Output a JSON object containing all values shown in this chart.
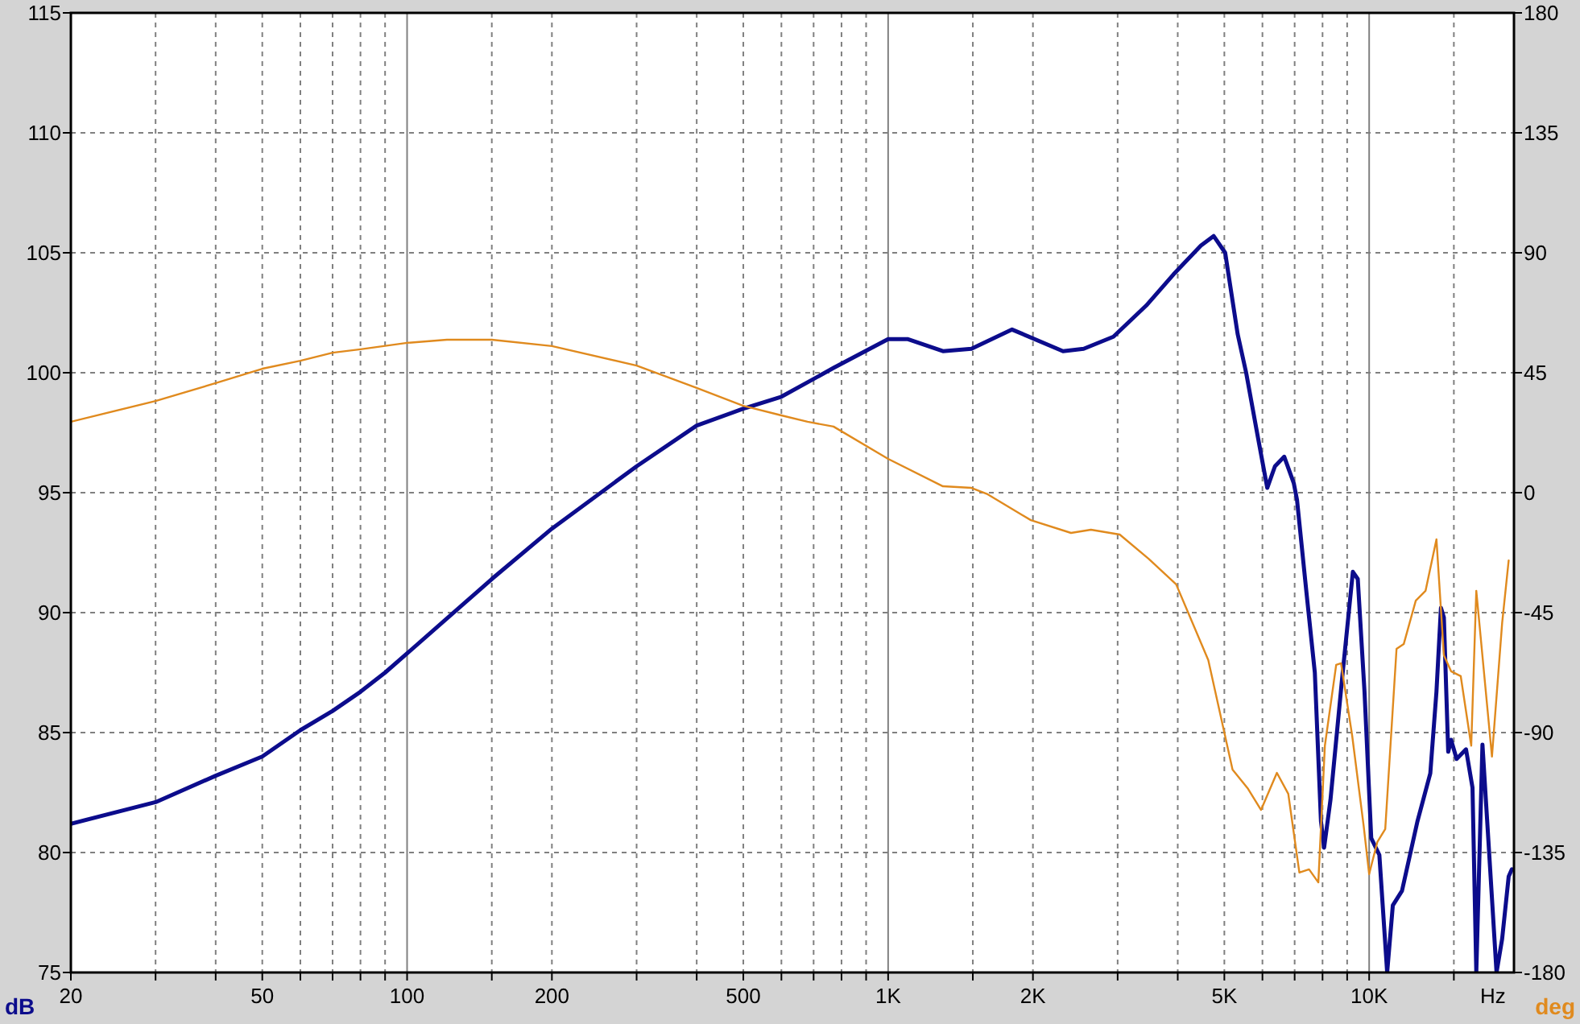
{
  "chart_data": {
    "type": "line",
    "xlabel": "Hz",
    "ylabel": "dB",
    "y2label": "deg",
    "log": "x",
    "grid": true,
    "xlim": [
      20,
      20000
    ],
    "ylim": [
      75,
      115
    ],
    "y2lim": [
      -180,
      180
    ],
    "xticks": [
      20,
      {
        "value": 30,
        "label": null
      },
      {
        "value": 40,
        "label": null
      },
      50,
      {
        "value": 60,
        "label": null
      },
      {
        "value": 70,
        "label": null
      },
      {
        "value": 80,
        "label": null
      },
      {
        "value": 90,
        "label": null
      },
      100,
      {
        "value": 150,
        "label": null
      },
      200,
      {
        "value": 300,
        "label": null
      },
      {
        "value": 400,
        "label": null
      },
      500,
      {
        "value": 600,
        "label": null
      },
      {
        "value": 700,
        "label": null
      },
      {
        "value": 800,
        "label": null
      },
      {
        "value": 900,
        "label": null
      },
      {
        "value": 1000,
        "label": "1K"
      },
      {
        "value": 1500,
        "label": null
      },
      {
        "value": 2000,
        "label": "2K"
      },
      {
        "value": 3000,
        "label": null
      },
      {
        "value": 4000,
        "label": null
      },
      {
        "value": 5000,
        "label": "5K"
      },
      {
        "value": 6000,
        "label": null
      },
      {
        "value": 7000,
        "label": null
      },
      {
        "value": 8000,
        "label": null
      },
      {
        "value": 9000,
        "label": null
      },
      {
        "value": 10000,
        "label": "10K"
      },
      {
        "value": 15000,
        "label": null
      }
    ],
    "yticks": [
      75,
      80,
      85,
      90,
      95,
      100,
      105,
      110,
      115
    ],
    "y2ticks": [
      -180,
      -135,
      -90,
      -45,
      0,
      45,
      90,
      135,
      180
    ],
    "series": [
      {
        "color": "#0c0c8c",
        "x": [
          20,
          30,
          40,
          50,
          60,
          70,
          80,
          90,
          100,
          150,
          200,
          300,
          400,
          500,
          600,
          680,
          770,
          1000,
          1100,
          1300,
          1490,
          1810,
          2310,
          2550,
          2940,
          3440,
          3920,
          4470,
          4750,
          5020,
          5330,
          5550,
          5860,
          6140,
          6370,
          6660,
          6970,
          7080,
          7420,
          7710,
          7940,
          8060,
          8310,
          8770,
          9250,
          9470,
          9780,
          10100,
          10500,
          10900,
          11200,
          11700,
          12600,
          13400,
          13800,
          14100,
          14300,
          14600,
          14800,
          15200,
          15900,
          16400,
          16700,
          17200,
          18400,
          18900,
          19500,
          19800
        ],
        "values": [
          81.2,
          82.1,
          83.2,
          84.0,
          85.1,
          85.9,
          86.7,
          87.5,
          88.3,
          91.4,
          93.5,
          96.1,
          97.8,
          98.5,
          99.0,
          99.6,
          100.2,
          101.4,
          101.4,
          100.9,
          101.0,
          101.8,
          100.9,
          101.0,
          101.5,
          102.8,
          104.1,
          105.3,
          105.7,
          105.0,
          101.6,
          100.0,
          97.4,
          95.2,
          96.1,
          96.5,
          95.4,
          94.7,
          90.7,
          87.5,
          81.3,
          80.2,
          82.2,
          87.1,
          91.7,
          91.4,
          86.7,
          80.6,
          79.9,
          75,
          77.8,
          78.4,
          81.3,
          83.3,
          86.7,
          90.2,
          89.8,
          84.2,
          84.7,
          83.9,
          84.3,
          82.7,
          75,
          84.5,
          75,
          76.4,
          79.0,
          79.3
        ]
      },
      {
        "color": "#e08a1e",
        "axis": "y2",
        "x": [
          20,
          30,
          40,
          50,
          60,
          70,
          80,
          100,
          121,
          150,
          200,
          300,
          400,
          500,
          600,
          680,
          770,
          1000,
          1300,
          1490,
          1610,
          1980,
          2400,
          2640,
          3030,
          3480,
          3970,
          4630,
          5200,
          5600,
          5960,
          6430,
          6790,
          7160,
          7500,
          7840,
          8090,
          8540,
          8740,
          9220,
          9740,
          10000,
          10400,
          10800,
          11400,
          11800,
          12500,
          13100,
          13800,
          14300,
          14800,
          15500,
          16300,
          16700,
          18000,
          18900,
          19500
        ],
        "values": [
          26.6,
          34.4,
          41.1,
          46.5,
          49.5,
          52.5,
          53.8,
          56.2,
          57.4,
          57.4,
          55,
          47.7,
          39.3,
          32.6,
          29,
          26.6,
          24.8,
          12.7,
          2.4,
          1.8,
          -0.6,
          -10.3,
          -15.1,
          -13.9,
          -15.7,
          -24.8,
          -34.4,
          -62.8,
          -103.9,
          -111.1,
          -119,
          -105.1,
          -113,
          -142.5,
          -141.3,
          -146.2,
          -94.9,
          -64.6,
          -64,
          -91.2,
          -125,
          -143.1,
          -131,
          -126.2,
          -58.6,
          -56.8,
          -40.5,
          -36.8,
          -17.5,
          -61,
          -67,
          -68.8,
          -94.9,
          -36.8,
          -99,
          -48.9,
          -25.4
        ]
      }
    ]
  }
}
